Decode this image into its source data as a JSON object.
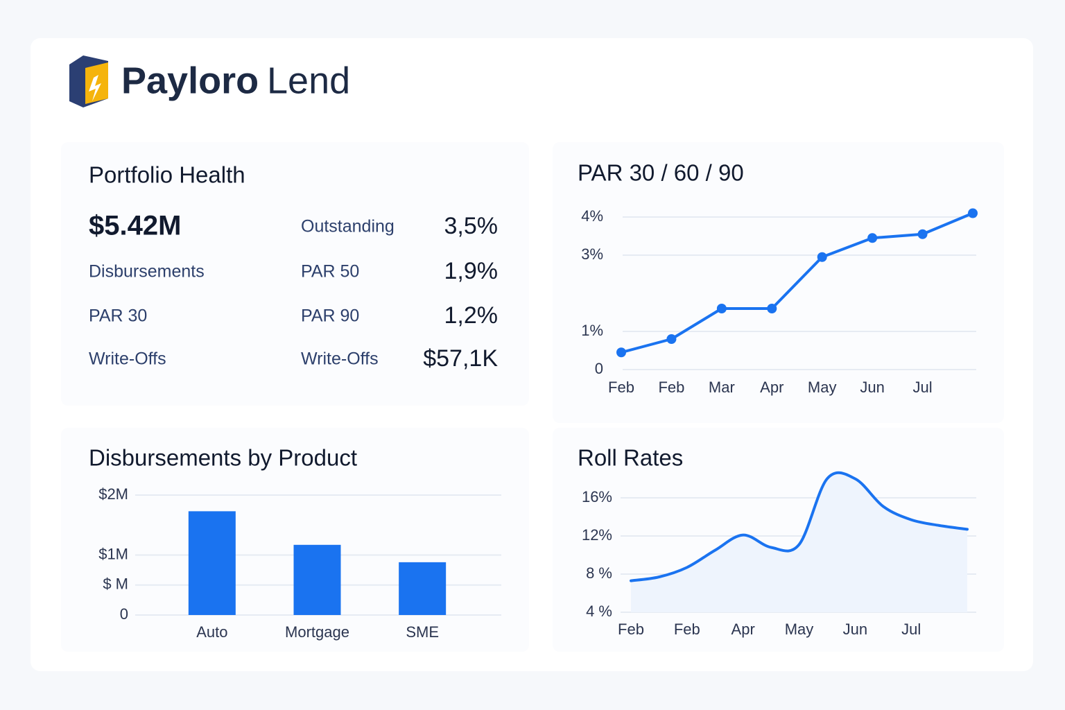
{
  "header": {
    "brand": "Payloro",
    "product": "Lend"
  },
  "portfolio": {
    "title": "Portfolio Health",
    "rows": [
      [
        "$5.42M",
        "Outstanding",
        "3,5%"
      ],
      [
        "Disbursements",
        "PAR 50",
        "1,9%"
      ],
      [
        "PAR 30",
        "PAR 90",
        "1,2%"
      ],
      [
        "Write-Offs",
        "Write-Offs",
        "$57,1K"
      ]
    ]
  },
  "chart_data": [
    {
      "type": "line",
      "title": "PAR 30 / 60 / 90",
      "categories": [
        "Feb",
        "Feb",
        "Mar",
        "Apr",
        "May",
        "Jun",
        "Jul",
        null
      ],
      "values": [
        0.45,
        0.8,
        1.6,
        1.6,
        2.95,
        3.45,
        3.55,
        4.1
      ],
      "color": "#1a73f0",
      "markers": true,
      "smooth": false,
      "area": false,
      "ylim": [
        0,
        4.2
      ],
      "yticks": [
        0,
        {
          "value": 1,
          "label": "1%"
        },
        {
          "value": 3,
          "label": "3%"
        },
        {
          "value": 4,
          "label": "4%"
        }
      ],
      "grid": true
    },
    {
      "type": "bar",
      "title": "Disbursements by Product",
      "categories": [
        "Auto",
        "Mortgage",
        "SME"
      ],
      "values": [
        1730000,
        1170000,
        880000
      ],
      "color": "#1a73f0",
      "ylim": [
        0,
        2000000
      ],
      "yticks": [
        0,
        {
          "value": 500000,
          "label": "$ M"
        },
        {
          "value": 1000000,
          "label": "$1M"
        },
        {
          "value": 2000000,
          "label": "$2M"
        }
      ],
      "grid": true
    },
    {
      "type": "line",
      "title": "Roll Rates",
      "categories": [
        "Feb",
        null,
        "Feb",
        null,
        "Apr",
        null,
        "May",
        null,
        "Jun",
        null,
        "Jul",
        null,
        null
      ],
      "values": [
        7.3,
        7.7,
        8.7,
        10.5,
        12.1,
        10.8,
        11.1,
        18,
        18,
        15.1,
        13.7,
        13.1,
        12.7
      ],
      "color": "#1a73f0",
      "markers": false,
      "smooth": true,
      "area": true,
      "ylim": [
        4,
        20
      ],
      "yticks": [
        {
          "value": 4,
          "label": "4 %"
        },
        {
          "value": 8,
          "label": "8 %"
        },
        {
          "value": 12,
          "label": "12%"
        },
        {
          "value": 16,
          "label": "16%"
        }
      ],
      "grid": true
    }
  ]
}
